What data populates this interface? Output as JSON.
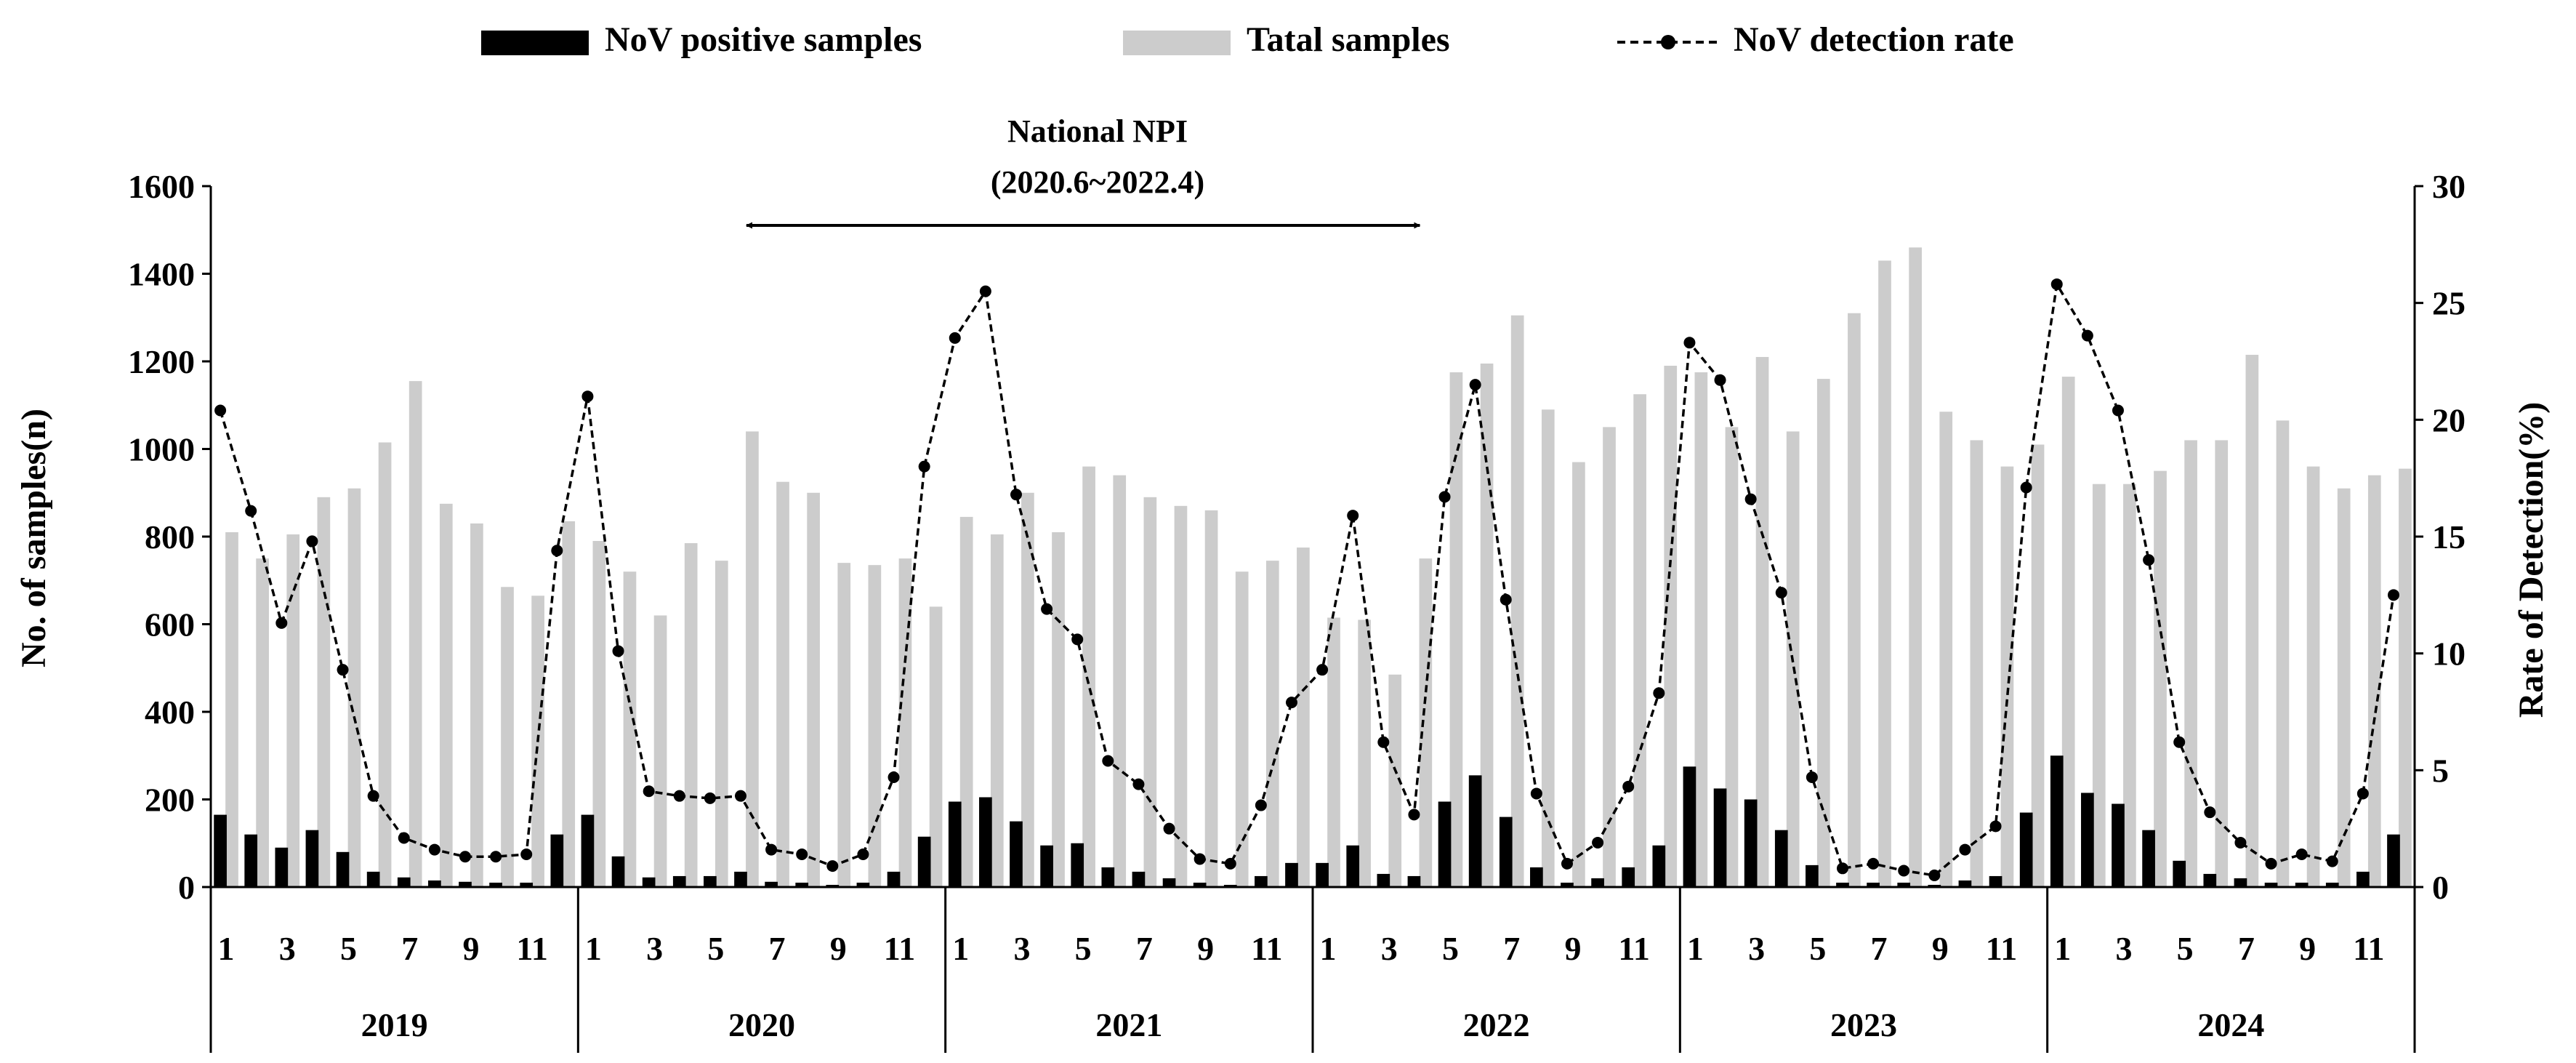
{
  "chart_data": {
    "type": "bar",
    "title": "",
    "xlabel": "",
    "ylabel": "No. of samples(n)",
    "y2label": "Rate of Detection(%)",
    "ylim": [
      0,
      1600
    ],
    "y2lim": [
      0,
      30
    ],
    "yticks": [
      "0",
      "200",
      "400",
      "600",
      "800",
      "1000",
      "1200",
      "1400",
      "1600"
    ],
    "y2ticks": [
      "0",
      "5",
      "10",
      "15",
      "20",
      "25",
      "30"
    ],
    "month_ticks": [
      "1",
      "",
      "3",
      "",
      "5",
      "",
      "7",
      "",
      "9",
      "",
      "11",
      ""
    ],
    "years": [
      "2019",
      "2020",
      "2021",
      "2022",
      "2023",
      "2024"
    ],
    "legend": [
      "NoV positive samples",
      "Tatal samples",
      "NoV detection rate"
    ],
    "annotation": {
      "label_line1": "National NPI",
      "label_line2": "(2020.6~2022.4)",
      "start_index": 17,
      "end_index": 39
    },
    "colors": {
      "positive": "#000000",
      "total": "#cccccc",
      "rate": "#000000"
    },
    "series": [
      {
        "name": "NoV positive samples",
        "kind": "bar",
        "values": [
          165,
          120,
          90,
          130,
          80,
          35,
          22,
          15,
          12,
          10,
          10,
          120,
          165,
          70,
          22,
          25,
          25,
          35,
          12,
          10,
          5,
          10,
          35,
          115,
          195,
          205,
          150,
          95,
          100,
          45,
          35,
          20,
          10,
          5,
          25,
          55,
          55,
          95,
          30,
          25,
          195,
          255,
          160,
          45,
          10,
          20,
          45,
          95,
          275,
          225,
          200,
          130,
          50,
          10,
          10,
          10,
          5,
          15,
          25,
          170,
          300,
          215,
          190,
          130,
          60,
          30,
          20,
          10,
          10,
          10,
          35,
          120
        ]
      },
      {
        "name": "Tatal samples",
        "kind": "bar",
        "values": [
          810,
          750,
          805,
          890,
          910,
          1015,
          1155,
          875,
          830,
          685,
          665,
          835,
          790,
          720,
          620,
          785,
          745,
          1040,
          925,
          900,
          740,
          735,
          750,
          640,
          845,
          805,
          900,
          810,
          960,
          940,
          890,
          870,
          860,
          720,
          745,
          775,
          615,
          610,
          485,
          750,
          1175,
          1195,
          1305,
          1090,
          970,
          1050,
          1125,
          1190,
          1175,
          1050,
          1210,
          1040,
          1160,
          1310,
          1430,
          1460,
          1085,
          1020,
          960,
          1010,
          1165,
          920,
          920,
          950,
          1020,
          1020,
          1215,
          1065,
          960,
          910,
          940,
          955
        ]
      },
      {
        "name": "NoV detection rate",
        "kind": "line",
        "axis": "right",
        "values": [
          20.4,
          16.1,
          11.3,
          14.8,
          9.3,
          3.9,
          2.1,
          1.6,
          1.3,
          1.3,
          1.4,
          14.4,
          21.0,
          10.1,
          4.1,
          3.9,
          3.8,
          3.9,
          1.6,
          1.4,
          0.9,
          1.4,
          4.7,
          18.0,
          23.5,
          25.5,
          16.8,
          11.9,
          10.6,
          5.4,
          4.4,
          2.5,
          1.2,
          1.0,
          3.5,
          7.9,
          9.3,
          15.9,
          6.2,
          3.1,
          16.7,
          21.5,
          12.3,
          4.0,
          1.0,
          1.9,
          4.3,
          8.3,
          23.3,
          21.7,
          16.6,
          12.6,
          4.7,
          0.8,
          1.0,
          0.7,
          0.5,
          1.6,
          2.6,
          17.1,
          25.8,
          23.6,
          20.4,
          14.0,
          6.2,
          3.2,
          1.9,
          1.0,
          1.4,
          1.1,
          4.0,
          12.5
        ]
      }
    ]
  }
}
